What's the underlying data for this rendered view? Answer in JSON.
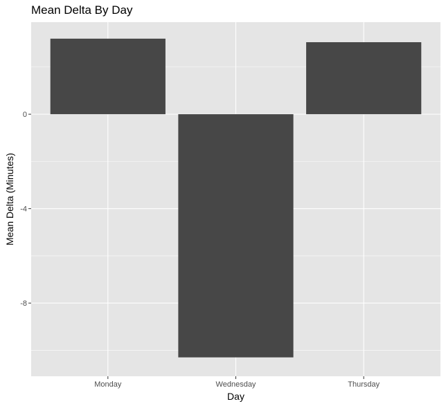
{
  "chart_data": {
    "type": "bar",
    "title": "Mean Delta By Day",
    "xlabel": "Day",
    "ylabel": "Mean Delta (Minutes)",
    "categories": [
      "Monday",
      "Wednesday",
      "Thursday"
    ],
    "values": [
      3.2,
      -10.3,
      3.05
    ],
    "ylim": [
      -11.1,
      3.9
    ],
    "yticks": [
      0,
      -4,
      -8
    ],
    "ytick_labels": [
      "0",
      "-4",
      "-8"
    ],
    "grid": true,
    "colors": {
      "panel_background": "#e5e5e5",
      "grid_major": "#ffffff",
      "bar_fill": "#474747"
    }
  }
}
